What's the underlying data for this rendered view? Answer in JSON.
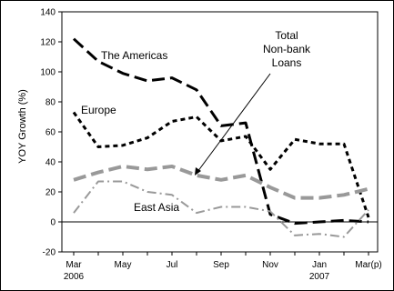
{
  "chart_data": {
    "type": "line",
    "title": "",
    "ylabel": "YOY Growth (%)",
    "ylim": [
      -20,
      140
    ],
    "yticks": [
      -20,
      0,
      20,
      40,
      60,
      80,
      100,
      120,
      140
    ],
    "grid": false,
    "x": [
      "Mar 2006",
      "Apr 2006",
      "May 2006",
      "Jun 2006",
      "Jul 2006",
      "Aug 2006",
      "Sep 2006",
      "Oct 2006",
      "Nov 2006",
      "Dec 2006",
      "Jan 2007",
      "Feb 2007",
      "Mar 2007 (p)"
    ],
    "xticks": [
      {
        "label": "Mar",
        "sub": "2006"
      },
      {
        "label": "May",
        "sub": ""
      },
      {
        "label": "Jul",
        "sub": ""
      },
      {
        "label": "Sep",
        "sub": ""
      },
      {
        "label": "Nov",
        "sub": ""
      },
      {
        "label": "Jan",
        "sub": "2007"
      },
      {
        "label": "Mar(p)",
        "sub": ""
      }
    ],
    "series": [
      {
        "name": "The Americas",
        "color": "#000000",
        "style": "long-dash",
        "values": [
          122,
          107,
          99,
          94,
          96,
          88,
          64,
          66,
          5,
          -1,
          0,
          1,
          0
        ]
      },
      {
        "name": "Europe",
        "color": "#000000",
        "style": "short-dash",
        "values": [
          73,
          50,
          51,
          56,
          67,
          70,
          54,
          57,
          35,
          55,
          52,
          52,
          3
        ]
      },
      {
        "name": "Total Non-bank Loans",
        "color": "#999999",
        "style": "thick-dash",
        "values": [
          28,
          33,
          37,
          35,
          37,
          31,
          28,
          31,
          23,
          16,
          16,
          18,
          22
        ]
      },
      {
        "name": "East Asia",
        "color": "#999999",
        "style": "dash-dot",
        "values": [
          6,
          27,
          27,
          20,
          18,
          6,
          10,
          10,
          7,
          -9,
          -8,
          -10,
          8
        ]
      }
    ],
    "annotations": {
      "americas": "The Americas",
      "europe": "Europe",
      "east_asia": "East Asia",
      "total_line1": "Total",
      "total_line2": "Non-bank",
      "total_line3": "Loans"
    }
  }
}
